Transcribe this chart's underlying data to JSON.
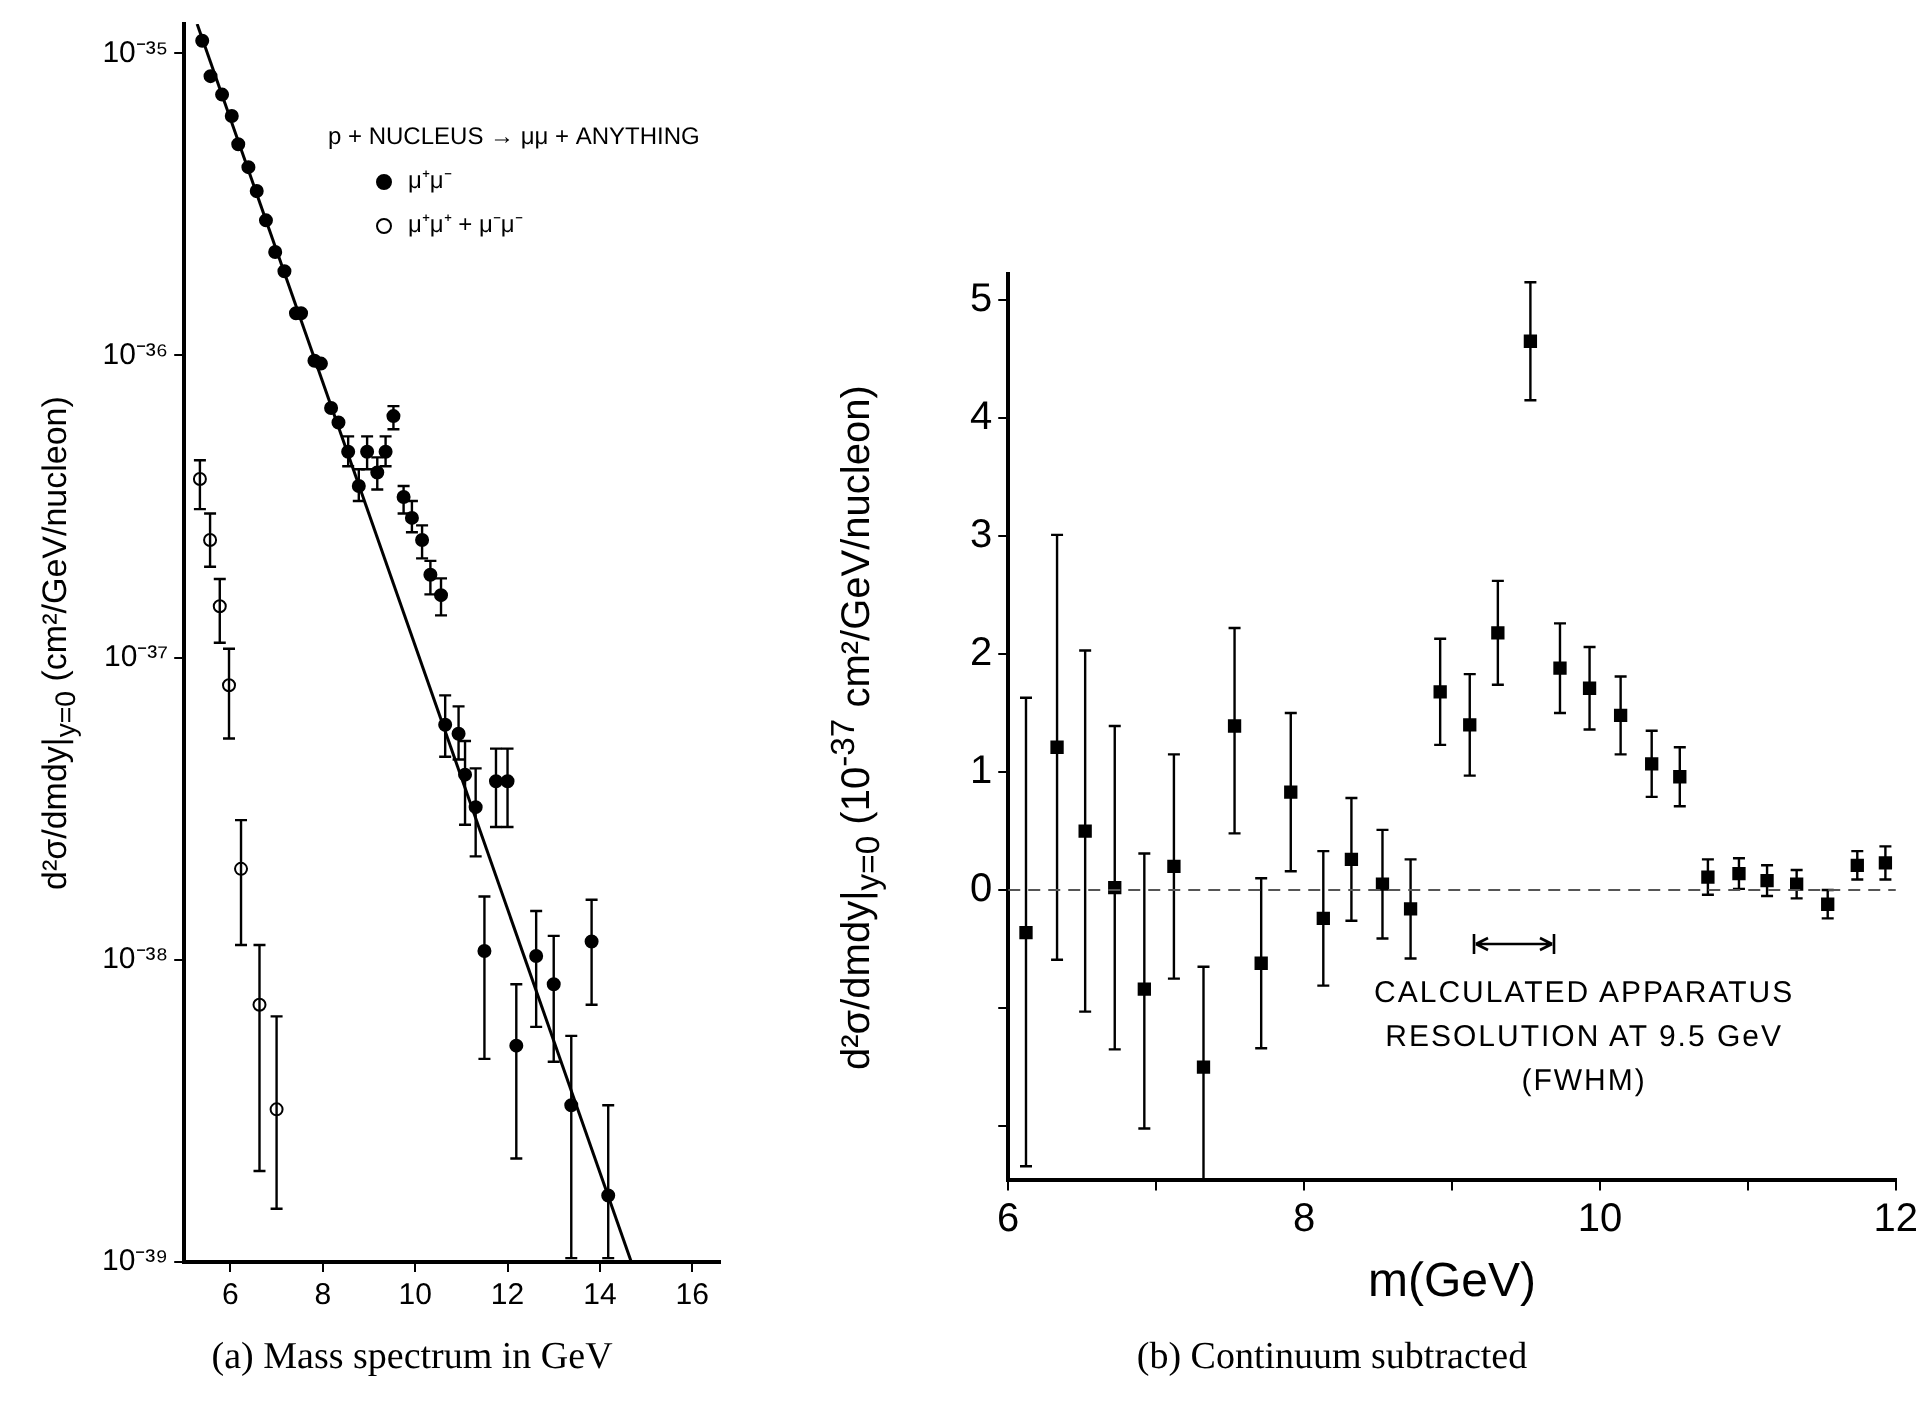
{
  "chart_data": [
    {
      "type": "scatter",
      "ylabel": "d²σ/dmdy|$_{y=0}$ (cm²/GeV/nucleon)",
      "legend_title": "p + NUCLEUS → μμ + ANYTHING",
      "legend": "top right",
      "grid": false,
      "log": "y",
      "marker": "circle",
      "xlim": [
        5,
        16.6
      ],
      "xticks": [
        6,
        8,
        10,
        12,
        14,
        16
      ],
      "ylim": [
        1e-39,
        1.25e-35
      ],
      "yticks": [
        {
          "value": 1e-39,
          "label": "10⁻³⁹"
        },
        {
          "value": 1e-38,
          "label": "10⁻³⁸"
        },
        {
          "value": 1e-37,
          "label": "10⁻³⁷"
        },
        {
          "value": 1e-36,
          "label": "10⁻³⁶"
        },
        {
          "value": 1e-35,
          "label": "10⁻³⁵"
        }
      ],
      "annotations": [
        "(a) Mass spectrum in GeV"
      ],
      "series": [
        {
          "name": "μ⁺μ⁻",
          "color": "#000000",
          "x": [
            5.39,
            5.57,
            5.82,
            6.03,
            6.17,
            6.39,
            6.57,
            6.77,
            6.97,
            7.17,
            7.42,
            7.53,
            7.82,
            7.96,
            8.18,
            8.34,
            8.55,
            8.78,
            8.96,
            9.18,
            9.36,
            9.53,
            9.75,
            9.93,
            10.15,
            10.33,
            10.56,
            10.65,
            10.94,
            11.08,
            11.31,
            11.5,
            11.75,
            12.0,
            12.19,
            12.62,
            13.0,
            13.38,
            13.82,
            14.18
          ],
          "values": [
            1.1e-35,
            8.4e-36,
            7.3e-36,
            6.2e-36,
            5e-36,
            4.2e-36,
            3.5e-36,
            2.8e-36,
            2.2e-36,
            1.9e-36,
            1.38e-36,
            1.38e-36,
            9.6e-37,
            9.4e-37,
            6.7e-37,
            6e-37,
            4.8e-37,
            3.7e-37,
            4.8e-37,
            4.1e-37,
            4.8e-37,
            6.3e-37,
            3.4e-37,
            2.9e-37,
            2.45e-37,
            1.88e-37,
            1.61e-37,
            6e-38,
            5.6e-38,
            4.1e-38,
            3.2e-38,
            1.07e-38,
            3.9e-38,
            3.9e-38,
            5.2e-39,
            1.03e-38,
            8.3e-39,
            3.3e-39,
            1.15e-38,
            1.66e-39
          ],
          "errors": [
            null,
            null,
            null,
            null,
            null,
            null,
            null,
            null,
            null,
            null,
            null,
            null,
            null,
            null,
            null,
            null,
            [
              4.3e-37,
              5.4e-37
            ],
            [
              3.3e-37,
              4.2e-37
            ],
            [
              4.2e-37,
              5.4e-37
            ],
            [
              3.6e-37,
              4.6e-37
            ],
            [
              4.3e-37,
              5.4e-37
            ],
            [
              5.7e-37,
              6.8e-37
            ],
            [
              3e-37,
              3.7e-37
            ],
            [
              2.6e-37,
              3.3e-37
            ],
            [
              2.13e-37,
              2.74e-37
            ],
            [
              1.62e-37,
              2.09e-37
            ],
            [
              1.38e-37,
              1.83e-37
            ],
            [
              4.7e-38,
              7.5e-38
            ],
            [
              4.6e-38,
              6.9e-38
            ],
            [
              2.8e-38,
              5.3e-38
            ],
            [
              2.2e-38,
              4.3e-38
            ],
            [
              4.7e-39,
              1.62e-38
            ],
            [
              2.75e-38,
              5e-38
            ],
            [
              2.75e-38,
              5e-38
            ],
            [
              2.2e-39,
              8.3e-39
            ],
            [
              6e-39,
              1.45e-38
            ],
            [
              4.6e-39,
              1.2e-38
            ],
            [
              1.03e-39,
              5.6e-39
            ],
            [
              7.1e-39,
              1.58e-38
            ],
            [
              1.03e-39,
              3.3e-39
            ]
          ]
        },
        {
          "name": "μ⁺μ⁺ + μ⁻μ⁻",
          "color": "#ffffff",
          "x": [
            5.34,
            5.56,
            5.77,
            5.97,
            6.23,
            6.63,
            7.0
          ],
          "values": [
            3.9e-37,
            2.45e-37,
            1.48e-37,
            8.1e-38,
            2e-38,
            7.1e-39,
            3.2e-39
          ],
          "errors": [
            [
              3.1e-37,
              4.5e-37
            ],
            [
              2e-37,
              3e-37
            ],
            [
              1.12e-37,
              1.82e-37
            ],
            [
              5.4e-38,
              1.07e-37
            ],
            [
              1.12e-38,
              2.9e-38
            ],
            [
              2e-39,
              1.12e-38
            ],
            [
              1.5e-39,
              6.5e-39
            ]
          ]
        },
        {
          "type": "line",
          "color": "#000000",
          "marker": "none",
          "x": [
            5.28,
            14.68
          ],
          "values": [
            1.25e-35,
            1e-39
          ]
        }
      ]
    },
    {
      "type": "scatter",
      "xlabel": "m(GeV)",
      "ylabel": "d²σ/dmdy|$_{y=0}$ (10$^{-37}$ cm²/GeV/nucleon)",
      "grid": false,
      "marker": "square",
      "xlim": [
        6,
        12
      ],
      "xticks": [
        6,
        {
          "value": 7,
          "label": null
        },
        8,
        {
          "value": 9,
          "label": null
        },
        10,
        {
          "value": 11,
          "label": null
        },
        12
      ],
      "ylim": [
        -2.46,
        5.22
      ],
      "yticks": [
        {
          "value": -2,
          "label": null
        },
        {
          "value": -1,
          "label": null
        },
        0,
        1,
        2,
        3,
        4,
        5
      ],
      "ref_lines": [
        {
          "axis": "y",
          "value": 0,
          "line_style": "dashed",
          "color": "#555555"
        }
      ],
      "annotations": [
        "CALCULATED APPARATUS\nRESOLUTION AT 9.5 GeV\n(FWHM)",
        "(b) Continuum subtracted"
      ],
      "series": [
        {
          "color": "#000000",
          "x": [
            6.12,
            6.33,
            6.52,
            6.72,
            6.92,
            7.12,
            7.32,
            7.53,
            7.71,
            7.91,
            8.13,
            8.32,
            8.53,
            8.72,
            8.92,
            9.12,
            9.31,
            9.53,
            9.73,
            9.93,
            10.14,
            10.35,
            10.54,
            10.73,
            10.94,
            11.13,
            11.33,
            11.54,
            11.74,
            11.93
          ],
          "values": [
            -0.36,
            1.21,
            0.5,
            0.02,
            -0.84,
            0.2,
            -1.5,
            1.39,
            -0.62,
            0.83,
            -0.24,
            0.26,
            0.05,
            -0.16,
            1.68,
            1.4,
            2.18,
            4.65,
            1.88,
            1.71,
            1.48,
            1.07,
            0.96,
            0.11,
            0.14,
            0.08,
            0.05,
            -0.12,
            0.21,
            0.23
          ],
          "errors": [
            [
              -2.34,
              1.63
            ],
            1.8,
            1.53,
            1.37,
            [
              -2.02,
              0.31
            ],
            0.95,
            [
              -2.45,
              -0.65
            ],
            [
              0.48,
              2.22
            ],
            0.72,
            0.67,
            0.57,
            0.52,
            0.46,
            0.42,
            0.45,
            0.43,
            0.44,
            0.5,
            0.38,
            0.35,
            0.33,
            0.28,
            0.25,
            0.15,
            0.13,
            0.13,
            0.12,
            0.12,
            0.12,
            0.14
          ]
        }
      ]
    }
  ]
}
